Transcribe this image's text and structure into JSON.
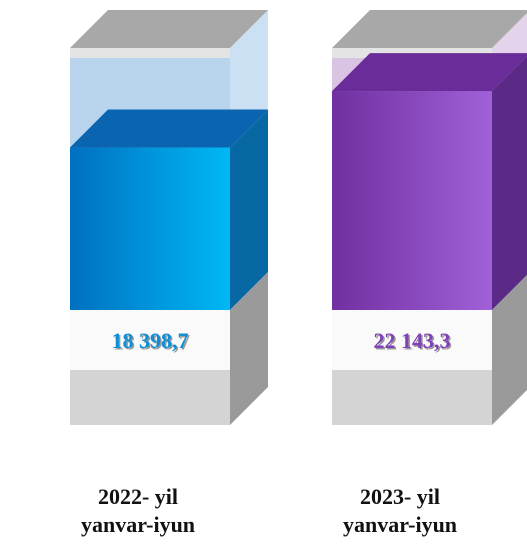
{
  "chart_data": {
    "type": "bar3d",
    "categories": [
      "2022- yil yanvar-iyun",
      "2023- yil yanvar-iyun"
    ],
    "values": [
      18398.7,
      22143.3
    ],
    "value_labels": [
      "18 398,7",
      "22 143,3"
    ],
    "colors": [
      "#0a8fd8",
      "#8040b8"
    ],
    "ylim": [
      0,
      25000
    ]
  }
}
